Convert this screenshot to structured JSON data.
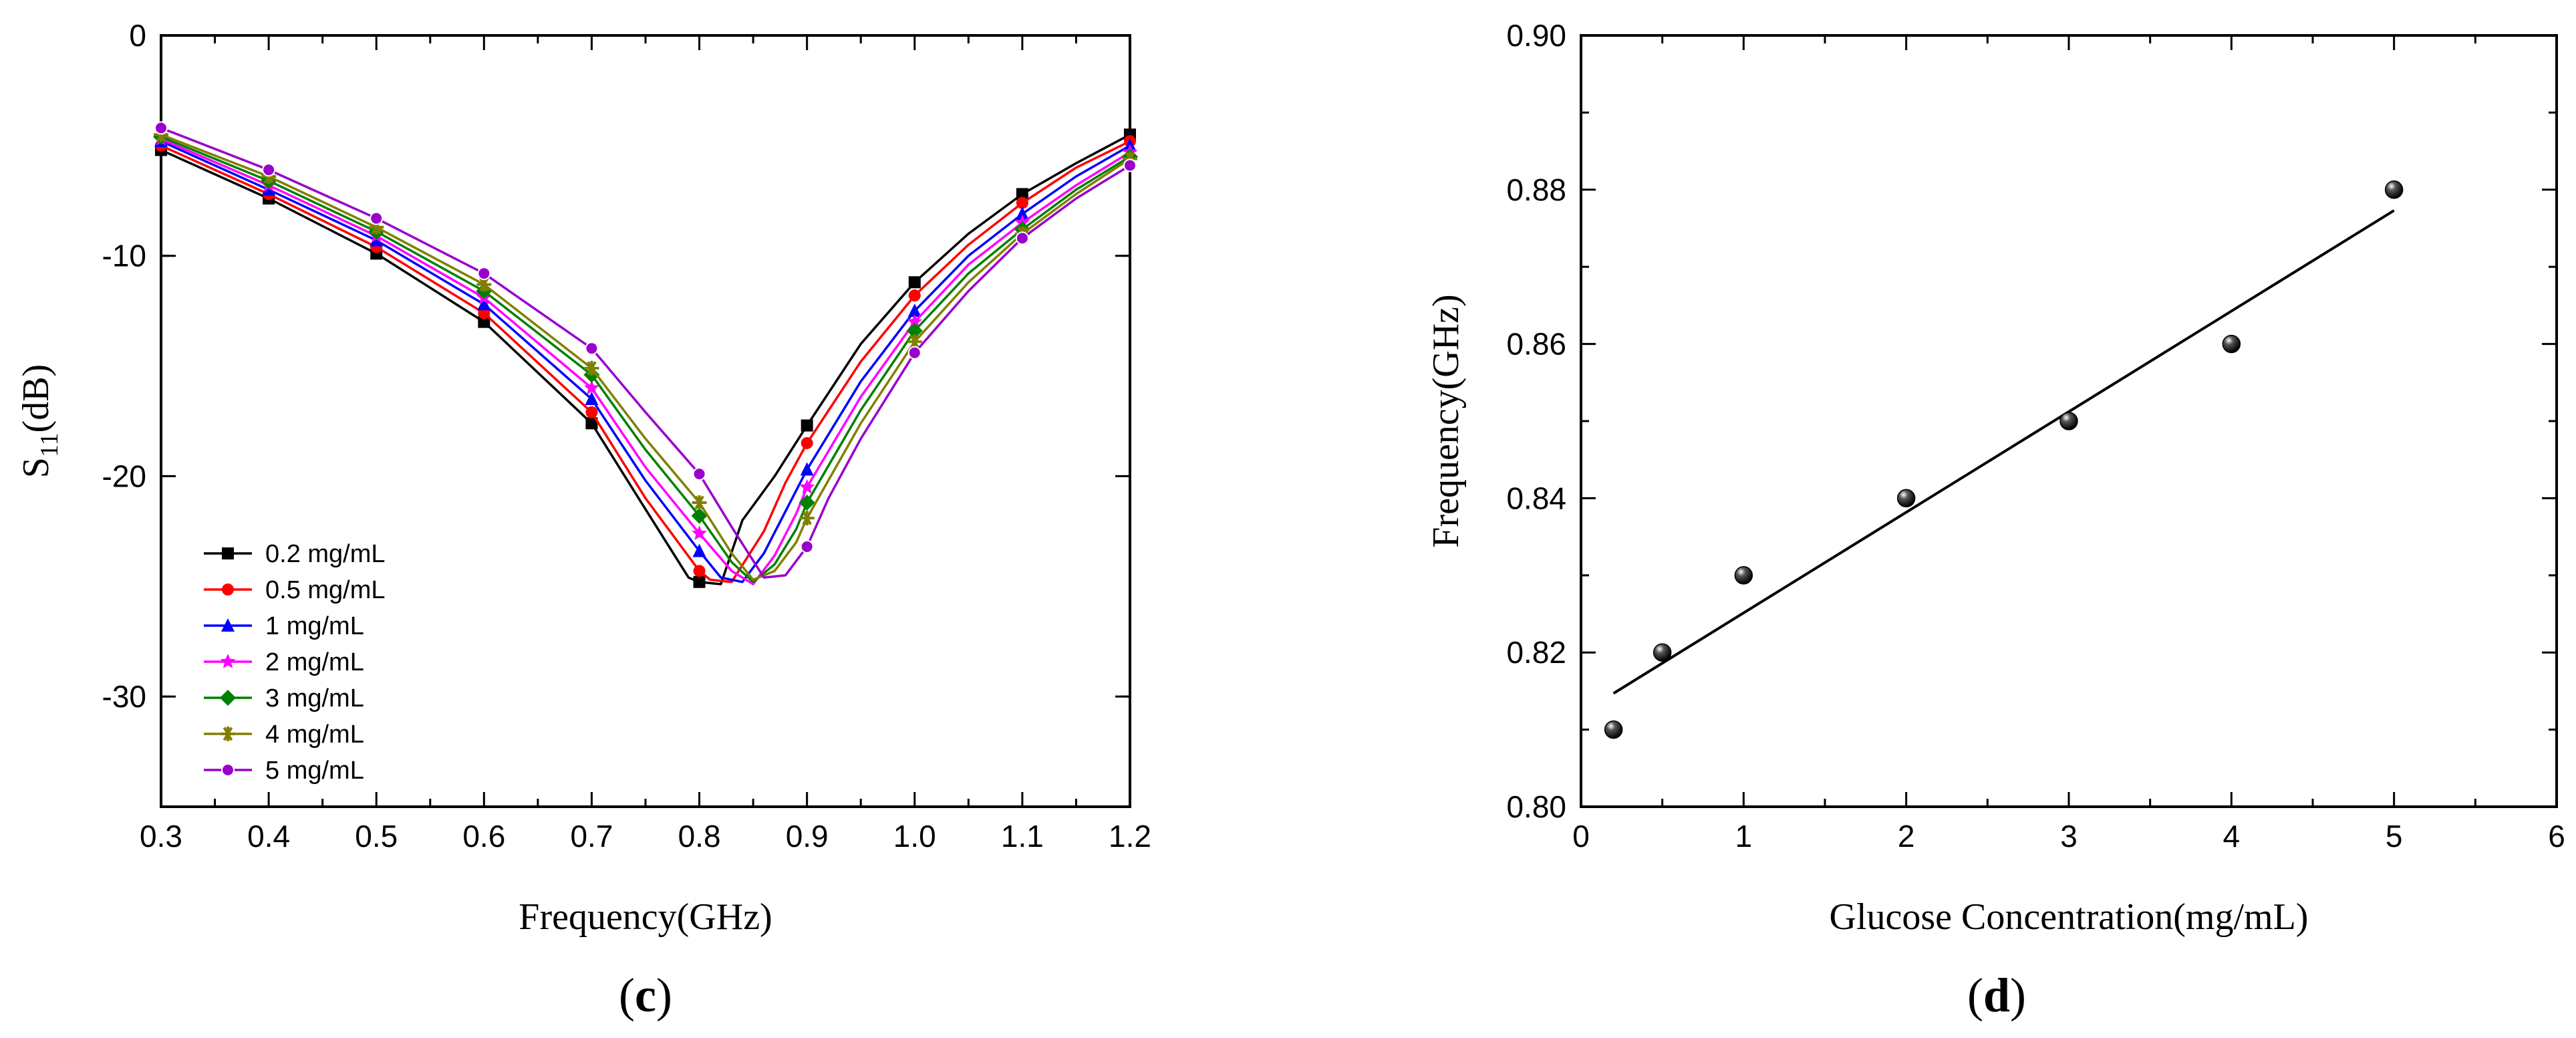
{
  "chart_data": [
    {
      "panel": "c",
      "type": "line",
      "xlabel": "Frequency(GHz)",
      "ylabel": {
        "main": "S",
        "sub": "11",
        "unit": "(dB)"
      },
      "xlim": [
        0.3,
        1.2
      ],
      "ylim": [
        -35,
        0
      ],
      "xticks": [
        "0.3",
        "0.4",
        "0.5",
        "0.6",
        "0.7",
        "0.8",
        "0.9",
        "1.0",
        "1.1",
        "1.2"
      ],
      "yticks": [
        "0",
        "-10",
        "-20",
        "-30"
      ],
      "marker_x": [
        0.3,
        0.4,
        0.5,
        0.6,
        0.7,
        0.8,
        0.9,
        1.0,
        1.1,
        1.2
      ],
      "series": [
        {
          "name": "0.2 mg/mL",
          "color": "#000000",
          "marker": "square",
          "x": [
            0.3,
            0.4,
            0.5,
            0.6,
            0.7,
            0.75,
            0.79,
            0.8,
            0.82,
            0.84,
            0.87,
            0.9,
            0.95,
            1.0,
            1.05,
            1.1,
            1.15,
            1.2
          ],
          "y": [
            -5.2,
            -7.4,
            -9.9,
            -13.0,
            -17.6,
            -21.5,
            -24.6,
            -24.8,
            -24.9,
            -22.0,
            -20.0,
            -17.7,
            -14.0,
            -11.2,
            -9.0,
            -7.2,
            -5.8,
            -4.5
          ]
        },
        {
          "name": "0.5 mg/mL",
          "color": "#ff0000",
          "marker": "circle",
          "x": [
            0.3,
            0.4,
            0.5,
            0.6,
            0.7,
            0.75,
            0.8,
            0.81,
            0.83,
            0.86,
            0.88,
            0.9,
            0.95,
            1.0,
            1.05,
            1.1,
            1.15,
            1.2
          ],
          "y": [
            -5.0,
            -7.2,
            -9.6,
            -12.6,
            -17.1,
            -21.0,
            -24.3,
            -24.7,
            -24.8,
            -22.5,
            -20.3,
            -18.5,
            -14.8,
            -11.8,
            -9.5,
            -7.6,
            -6.0,
            -4.8
          ]
        },
        {
          "name": "1 mg/mL",
          "color": "#0000ff",
          "marker": "triangle",
          "x": [
            0.3,
            0.4,
            0.5,
            0.6,
            0.7,
            0.75,
            0.8,
            0.82,
            0.84,
            0.86,
            0.88,
            0.9,
            0.95,
            1.0,
            1.05,
            1.1,
            1.15,
            1.2
          ],
          "y": [
            -4.8,
            -7.0,
            -9.3,
            -12.2,
            -16.5,
            -20.2,
            -23.4,
            -24.6,
            -24.8,
            -23.5,
            -21.6,
            -19.7,
            -15.7,
            -12.5,
            -10.0,
            -8.1,
            -6.4,
            -5.0
          ]
        },
        {
          "name": "2 mg/mL",
          "color": "#ff00ff",
          "marker": "star",
          "x": [
            0.3,
            0.4,
            0.5,
            0.6,
            0.7,
            0.75,
            0.8,
            0.83,
            0.85,
            0.87,
            0.89,
            0.9,
            0.95,
            1.0,
            1.05,
            1.1,
            1.15,
            1.2
          ],
          "y": [
            -4.7,
            -6.8,
            -9.1,
            -11.9,
            -16.0,
            -19.6,
            -22.6,
            -24.3,
            -24.9,
            -23.6,
            -21.7,
            -20.5,
            -16.4,
            -13.0,
            -10.4,
            -8.5,
            -6.8,
            -5.3
          ]
        },
        {
          "name": "3 mg/mL",
          "color": "#008000",
          "marker": "diamond",
          "x": [
            0.3,
            0.4,
            0.5,
            0.6,
            0.7,
            0.75,
            0.8,
            0.83,
            0.85,
            0.87,
            0.89,
            0.9,
            0.95,
            1.0,
            1.05,
            1.1,
            1.15,
            1.2
          ],
          "y": [
            -4.6,
            -6.6,
            -8.9,
            -11.6,
            -15.4,
            -18.8,
            -21.8,
            -23.9,
            -24.8,
            -24.0,
            -22.4,
            -21.2,
            -17.0,
            -13.4,
            -10.8,
            -8.8,
            -7.0,
            -5.5
          ]
        },
        {
          "name": "4 mg/mL",
          "color": "#808000",
          "marker": "asterisk",
          "x": [
            0.3,
            0.4,
            0.5,
            0.6,
            0.7,
            0.75,
            0.8,
            0.83,
            0.85,
            0.87,
            0.89,
            0.9,
            0.95,
            1.0,
            1.05,
            1.1,
            1.15,
            1.2
          ],
          "y": [
            -4.5,
            -6.4,
            -8.7,
            -11.3,
            -15.1,
            -18.3,
            -21.2,
            -23.5,
            -24.7,
            -24.3,
            -23.0,
            -21.9,
            -17.6,
            -13.9,
            -11.2,
            -9.0,
            -7.2,
            -5.6
          ]
        },
        {
          "name": "5 mg/mL",
          "color": "#9900cc",
          "marker": "circle-half",
          "x": [
            0.3,
            0.4,
            0.5,
            0.6,
            0.7,
            0.75,
            0.8,
            0.83,
            0.86,
            0.88,
            0.9,
            0.92,
            0.95,
            1.0,
            1.05,
            1.1,
            1.15,
            1.2
          ],
          "y": [
            -4.2,
            -6.1,
            -8.3,
            -10.8,
            -14.2,
            -17.1,
            -19.9,
            -22.3,
            -24.6,
            -24.5,
            -23.2,
            -21.0,
            -18.3,
            -14.4,
            -11.6,
            -9.2,
            -7.4,
            -5.9
          ]
        }
      ]
    },
    {
      "panel": "d",
      "type": "scatter",
      "xlabel": "Glucose Concentration(mg/mL)",
      "ylabel": "Frequency(GHz)",
      "xlim": [
        0,
        6
      ],
      "ylim": [
        0.8,
        0.9
      ],
      "xticks": [
        "0",
        "1",
        "2",
        "3",
        "4",
        "5",
        "6"
      ],
      "yticks": [
        "0.80",
        "0.82",
        "0.84",
        "0.86",
        "0.88",
        "0.90"
      ],
      "points": {
        "x": [
          0.2,
          0.5,
          1,
          2,
          3,
          4,
          5
        ],
        "y": [
          0.81,
          0.82,
          0.83,
          0.84,
          0.85,
          0.86,
          0.88
        ]
      },
      "fit_line": {
        "x": [
          0.2,
          5
        ],
        "y": [
          0.8147,
          0.8773
        ]
      }
    }
  ],
  "panels": {
    "c_label": "c",
    "d_label": "d"
  }
}
